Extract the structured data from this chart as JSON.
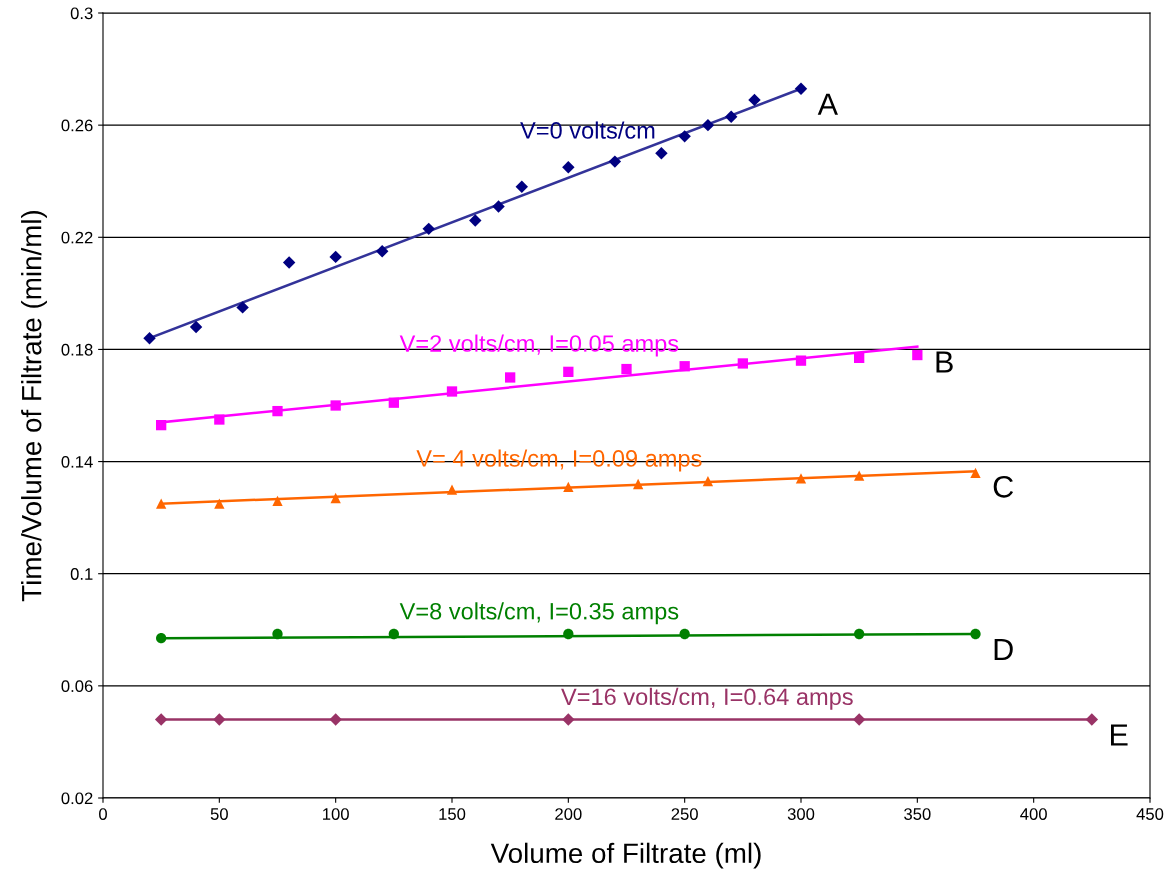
{
  "chart_data": {
    "type": "scatter",
    "xlabel": "Volume of Filtrate (ml)",
    "ylabel": "Time/Volume of Filtrate (min/ml)",
    "xlim": [
      0,
      450
    ],
    "xticks": [
      0,
      50,
      100,
      150,
      200,
      250,
      300,
      350,
      400,
      450
    ],
    "ylim": [
      0.02,
      0.3
    ],
    "yticks": [
      0.02,
      0.06,
      0.1,
      0.14,
      0.18,
      0.22,
      0.26,
      0.3
    ],
    "grid": "y",
    "legend": false,
    "series": [
      {
        "name": "V=0 volts/cm",
        "marker": "diamond",
        "color": "#000080",
        "x": [
          20,
          40,
          60,
          80,
          100,
          120,
          140,
          160,
          170,
          180,
          200,
          220,
          240,
          250,
          260,
          270,
          280,
          300
        ],
        "values": [
          0.184,
          0.188,
          0.195,
          0.211,
          0.213,
          0.215,
          0.223,
          0.226,
          0.231,
          0.238,
          0.245,
          0.247,
          0.25,
          0.256,
          0.26,
          0.263,
          0.269,
          0.273
        ]
      },
      {
        "name": "A",
        "type": "line",
        "marker": "none",
        "color": "#333399",
        "x": [
          20,
          300
        ],
        "values": [
          0.184,
          0.273
        ]
      },
      {
        "name": "V=2 volts/cm, I=0.05 amps",
        "marker": "square",
        "color": "#ff00ff",
        "x": [
          25,
          50,
          75,
          100,
          125,
          150,
          175,
          200,
          225,
          250,
          275,
          300,
          325,
          350
        ],
        "values": [
          0.153,
          0.155,
          0.158,
          0.16,
          0.161,
          0.165,
          0.17,
          0.172,
          0.173,
          0.174,
          0.175,
          0.176,
          0.177,
          0.178
        ]
      },
      {
        "name": "B",
        "type": "line",
        "marker": "none",
        "color": "#ff00ff",
        "x": [
          25,
          350
        ],
        "values": [
          0.154,
          0.181
        ]
      },
      {
        "name": "V= 4 volts/cm, I=0.09 amps",
        "marker": "triangle",
        "color": "#ff6600",
        "x": [
          25,
          50,
          75,
          100,
          150,
          200,
          230,
          260,
          300,
          325,
          375
        ],
        "values": [
          0.125,
          0.125,
          0.126,
          0.127,
          0.13,
          0.131,
          0.132,
          0.133,
          0.134,
          0.135,
          0.136
        ]
      },
      {
        "name": "C",
        "type": "line",
        "marker": "none",
        "color": "#ff6600",
        "x": [
          25,
          375
        ],
        "values": [
          0.125,
          0.1365
        ]
      },
      {
        "name": "V=8 volts/cm, I=0.35 amps",
        "marker": "circle",
        "color": "#008000",
        "x": [
          25,
          75,
          125,
          200,
          250,
          325,
          375
        ],
        "values": [
          0.077,
          0.0785,
          0.0785,
          0.0785,
          0.0785,
          0.0785,
          0.0785
        ]
      },
      {
        "name": "D",
        "type": "line",
        "marker": "none",
        "color": "#008000",
        "x": [
          25,
          375
        ],
        "values": [
          0.077,
          0.0785
        ]
      },
      {
        "name": "V=16 volts/cm, I=0.64 amps",
        "marker": "diamond",
        "color": "#993366",
        "x": [
          25,
          50,
          100,
          200,
          325,
          425
        ],
        "values": [
          0.048,
          0.048,
          0.048,
          0.048,
          0.048,
          0.048
        ]
      },
      {
        "name": "E",
        "type": "line",
        "marker": "none",
        "color": "#993366",
        "x": [
          25,
          425
        ],
        "values": [
          0.048,
          0.048
        ]
      }
    ]
  }
}
